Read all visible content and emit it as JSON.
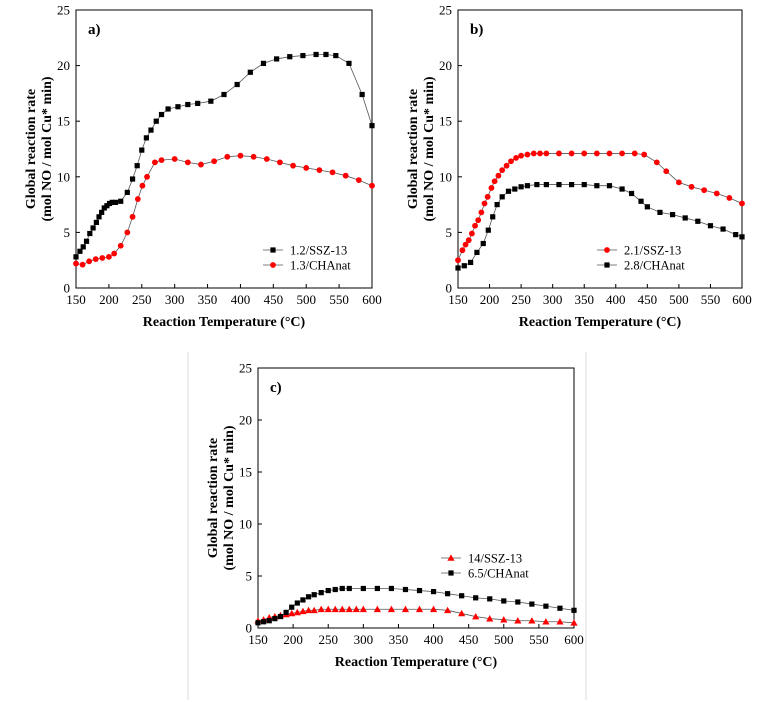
{
  "colors": {
    "black_series": "#000000",
    "red_series": "#ff0000",
    "axis": "#000000",
    "line_gray": "#555555"
  },
  "chart_data": [
    {
      "type": "line",
      "panel_label": "a)",
      "xlabel": "Reaction Temperature (°C)",
      "ylabel_line1": "Global reaction rate",
      "ylabel_line2": "(mol NO / mol Cu* min)",
      "xlim": [
        150,
        600
      ],
      "ylim": [
        0,
        25
      ],
      "xticks": [
        150,
        200,
        250,
        300,
        350,
        400,
        450,
        500,
        550,
        600
      ],
      "yticks": [
        0,
        5,
        10,
        15,
        20,
        25
      ],
      "legend_position": "bottom-right",
      "series": [
        {
          "name": "1.2/SSZ-13",
          "color": "#000000",
          "marker": "square",
          "points": [
            [
              150,
              2.8
            ],
            [
              156,
              3.3
            ],
            [
              161,
              3.7
            ],
            [
              166,
              4.2
            ],
            [
              171,
              4.9
            ],
            [
              176,
              5.4
            ],
            [
              181,
              5.9
            ],
            [
              185,
              6.4
            ],
            [
              189,
              6.8
            ],
            [
              193,
              7.2
            ],
            [
              197,
              7.4
            ],
            [
              201,
              7.6
            ],
            [
              205,
              7.7
            ],
            [
              210,
              7.7
            ],
            [
              218,
              7.8
            ],
            [
              228,
              8.6
            ],
            [
              236,
              9.8
            ],
            [
              243,
              11.0
            ],
            [
              250,
              12.4
            ],
            [
              257,
              13.5
            ],
            [
              264,
              14.2
            ],
            [
              272,
              15.0
            ],
            [
              280,
              15.6
            ],
            [
              290,
              16.1
            ],
            [
              305,
              16.3
            ],
            [
              320,
              16.5
            ],
            [
              335,
              16.6
            ],
            [
              355,
              16.8
            ],
            [
              375,
              17.4
            ],
            [
              395,
              18.3
            ],
            [
              415,
              19.4
            ],
            [
              435,
              20.2
            ],
            [
              455,
              20.6
            ],
            [
              475,
              20.8
            ],
            [
              495,
              20.9
            ],
            [
              515,
              21.0
            ],
            [
              530,
              21.0
            ],
            [
              545,
              20.9
            ],
            [
              565,
              20.2
            ],
            [
              585,
              17.4
            ],
            [
              600,
              14.6
            ]
          ]
        },
        {
          "name": "1.3/CHAnat",
          "color": "#ff0000",
          "marker": "circle",
          "points": [
            [
              150,
              2.2
            ],
            [
              160,
              2.1
            ],
            [
              170,
              2.4
            ],
            [
              180,
              2.6
            ],
            [
              190,
              2.7
            ],
            [
              200,
              2.8
            ],
            [
              208,
              3.1
            ],
            [
              218,
              3.8
            ],
            [
              228,
              5.0
            ],
            [
              236,
              6.4
            ],
            [
              244,
              8.0
            ],
            [
              251,
              9.2
            ],
            [
              258,
              10.0
            ],
            [
              270,
              11.3
            ],
            [
              280,
              11.5
            ],
            [
              300,
              11.6
            ],
            [
              320,
              11.3
            ],
            [
              340,
              11.1
            ],
            [
              360,
              11.4
            ],
            [
              380,
              11.8
            ],
            [
              400,
              11.9
            ],
            [
              420,
              11.8
            ],
            [
              440,
              11.6
            ],
            [
              460,
              11.3
            ],
            [
              480,
              11.0
            ],
            [
              500,
              10.8
            ],
            [
              520,
              10.6
            ],
            [
              540,
              10.4
            ],
            [
              560,
              10.1
            ],
            [
              580,
              9.7
            ],
            [
              600,
              9.2
            ]
          ]
        }
      ]
    },
    {
      "type": "line",
      "panel_label": "b)",
      "xlabel": "Reaction Temperature (°C)",
      "ylabel_line1": "Global reaction rate",
      "ylabel_line2": "(mol NO / mol Cu* min)",
      "xlim": [
        150,
        600
      ],
      "ylim": [
        0,
        25
      ],
      "xticks": [
        150,
        200,
        250,
        300,
        350,
        400,
        450,
        500,
        550,
        600
      ],
      "yticks": [
        0,
        5,
        10,
        15,
        20,
        25
      ],
      "legend_position": "bottom-right",
      "series": [
        {
          "name": "2.1/SSZ-13",
          "color": "#ff0000",
          "marker": "circle",
          "points": [
            [
              150,
              2.5
            ],
            [
              157,
              3.4
            ],
            [
              162,
              3.9
            ],
            [
              167,
              4.3
            ],
            [
              172,
              4.9
            ],
            [
              177,
              5.6
            ],
            [
              182,
              6.1
            ],
            [
              187,
              6.8
            ],
            [
              192,
              7.6
            ],
            [
              197,
              8.2
            ],
            [
              203,
              9.0
            ],
            [
              208,
              9.6
            ],
            [
              214,
              10.1
            ],
            [
              220,
              10.6
            ],
            [
              227,
              11.0
            ],
            [
              234,
              11.4
            ],
            [
              242,
              11.7
            ],
            [
              250,
              11.9
            ],
            [
              260,
              12.0
            ],
            [
              270,
              12.1
            ],
            [
              280,
              12.1
            ],
            [
              290,
              12.1
            ],
            [
              310,
              12.1
            ],
            [
              330,
              12.1
            ],
            [
              350,
              12.1
            ],
            [
              370,
              12.1
            ],
            [
              390,
              12.1
            ],
            [
              410,
              12.1
            ],
            [
              430,
              12.1
            ],
            [
              445,
              12.0
            ],
            [
              465,
              11.3
            ],
            [
              480,
              10.5
            ],
            [
              500,
              9.5
            ],
            [
              520,
              9.1
            ],
            [
              540,
              8.8
            ],
            [
              560,
              8.5
            ],
            [
              580,
              8.1
            ],
            [
              600,
              7.6
            ]
          ]
        },
        {
          "name": "2.8/CHAnat",
          "color": "#000000",
          "marker": "square",
          "points": [
            [
              150,
              1.8
            ],
            [
              160,
              2.0
            ],
            [
              170,
              2.3
            ],
            [
              180,
              3.2
            ],
            [
              190,
              4.0
            ],
            [
              198,
              5.2
            ],
            [
              205,
              6.4
            ],
            [
              212,
              7.5
            ],
            [
              220,
              8.2
            ],
            [
              230,
              8.7
            ],
            [
              240,
              8.9
            ],
            [
              250,
              9.1
            ],
            [
              260,
              9.2
            ],
            [
              275,
              9.3
            ],
            [
              290,
              9.3
            ],
            [
              310,
              9.3
            ],
            [
              330,
              9.3
            ],
            [
              350,
              9.3
            ],
            [
              370,
              9.2
            ],
            [
              390,
              9.2
            ],
            [
              410,
              8.9
            ],
            [
              425,
              8.5
            ],
            [
              440,
              7.8
            ],
            [
              450,
              7.3
            ],
            [
              470,
              6.8
            ],
            [
              490,
              6.6
            ],
            [
              510,
              6.3
            ],
            [
              530,
              6.0
            ],
            [
              550,
              5.6
            ],
            [
              570,
              5.3
            ],
            [
              590,
              4.8
            ],
            [
              600,
              4.6
            ]
          ]
        }
      ]
    },
    {
      "type": "line",
      "panel_label": "c)",
      "xlabel": "Reaction Temperature (°C)",
      "ylabel_line1": "Global reaction rate",
      "ylabel_line2": "(mol NO / mol Cu* min)",
      "xlim": [
        150,
        600
      ],
      "ylim": [
        0,
        25
      ],
      "xticks": [
        150,
        200,
        250,
        300,
        350,
        400,
        450,
        500,
        550,
        600
      ],
      "yticks": [
        0,
        5,
        10,
        15,
        20,
        25
      ],
      "legend_position": "bottom-right",
      "series": [
        {
          "name": "14/SSZ-13",
          "color": "#ff0000",
          "marker": "triangle",
          "points": [
            [
              150,
              0.7
            ],
            [
              158,
              0.8
            ],
            [
              166,
              1.0
            ],
            [
              174,
              1.1
            ],
            [
              182,
              1.2
            ],
            [
              190,
              1.3
            ],
            [
              198,
              1.4
            ],
            [
              206,
              1.5
            ],
            [
              214,
              1.6
            ],
            [
              222,
              1.7
            ],
            [
              230,
              1.7
            ],
            [
              240,
              1.8
            ],
            [
              250,
              1.8
            ],
            [
              260,
              1.8
            ],
            [
              270,
              1.8
            ],
            [
              280,
              1.8
            ],
            [
              290,
              1.8
            ],
            [
              300,
              1.8
            ],
            [
              320,
              1.8
            ],
            [
              340,
              1.8
            ],
            [
              360,
              1.8
            ],
            [
              380,
              1.8
            ],
            [
              400,
              1.8
            ],
            [
              420,
              1.7
            ],
            [
              440,
              1.4
            ],
            [
              460,
              1.1
            ],
            [
              480,
              0.9
            ],
            [
              500,
              0.8
            ],
            [
              520,
              0.7
            ],
            [
              540,
              0.7
            ],
            [
              560,
              0.6
            ],
            [
              580,
              0.6
            ],
            [
              600,
              0.5
            ]
          ]
        },
        {
          "name": "6.5/CHAnat",
          "color": "#000000",
          "marker": "square",
          "points": [
            [
              150,
              0.5
            ],
            [
              158,
              0.6
            ],
            [
              166,
              0.7
            ],
            [
              174,
              0.9
            ],
            [
              182,
              1.1
            ],
            [
              190,
              1.5
            ],
            [
              198,
              2.0
            ],
            [
              206,
              2.4
            ],
            [
              214,
              2.7
            ],
            [
              222,
              3.0
            ],
            [
              230,
              3.2
            ],
            [
              240,
              3.4
            ],
            [
              250,
              3.6
            ],
            [
              260,
              3.7
            ],
            [
              270,
              3.8
            ],
            [
              280,
              3.8
            ],
            [
              300,
              3.8
            ],
            [
              320,
              3.8
            ],
            [
              340,
              3.8
            ],
            [
              360,
              3.7
            ],
            [
              380,
              3.6
            ],
            [
              400,
              3.5
            ],
            [
              420,
              3.3
            ],
            [
              440,
              3.1
            ],
            [
              460,
              2.9
            ],
            [
              480,
              2.8
            ],
            [
              500,
              2.6
            ],
            [
              520,
              2.5
            ],
            [
              540,
              2.3
            ],
            [
              560,
              2.1
            ],
            [
              580,
              1.9
            ],
            [
              600,
              1.7
            ]
          ]
        }
      ]
    }
  ]
}
